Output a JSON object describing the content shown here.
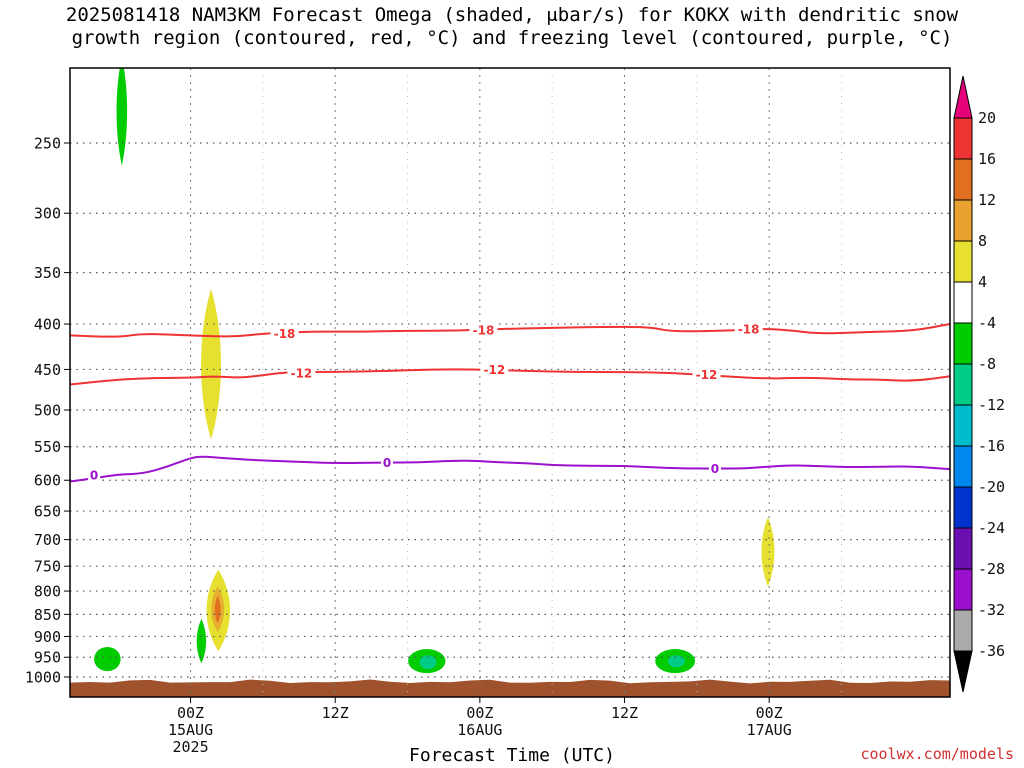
{
  "title": {
    "line1": "2025081418 NAM3KM Forecast Omega (shaded, μbar/s) for KOKX with dendritic snow",
    "line2": "growth region (contoured, red, °C) and freezing level (contoured, purple, °C)"
  },
  "watermark": "coolwx.com/models",
  "chart_data": {
    "type": "time-height contour",
    "xlabel": "Forecast Time (UTC)",
    "ylabel": "",
    "x_range_hours": [
      -10,
      63
    ],
    "y_range_hPa": [
      200,
      1030
    ],
    "y_scale": "log-pressure (inverted)",
    "grid": "dotted",
    "y_ticks": [
      250,
      300,
      350,
      400,
      450,
      500,
      550,
      600,
      650,
      700,
      750,
      800,
      850,
      900,
      950,
      1000
    ],
    "x_ticks": [
      {
        "hour": 0,
        "label": [
          "00Z",
          "15AUG",
          "2025"
        ]
      },
      {
        "hour": 12,
        "label": [
          "12Z"
        ]
      },
      {
        "hour": 24,
        "label": [
          "00Z",
          "16AUG"
        ]
      },
      {
        "hour": 36,
        "label": [
          "12Z"
        ]
      },
      {
        "hour": 48,
        "label": [
          "00Z",
          "17AUG"
        ]
      }
    ],
    "contours": [
      {
        "name": "-18",
        "color": "#ee3333",
        "points": [
          [
            -10,
            412
          ],
          [
            -6,
            414
          ],
          [
            -4,
            410
          ],
          [
            0,
            412
          ],
          [
            2,
            413
          ],
          [
            4,
            413
          ],
          [
            6,
            410
          ],
          [
            8,
            409
          ],
          [
            10,
            408
          ],
          [
            12,
            408
          ],
          [
            14,
            408
          ],
          [
            18,
            407
          ],
          [
            22,
            407
          ],
          [
            26,
            405
          ],
          [
            30,
            404
          ],
          [
            34,
            403
          ],
          [
            38,
            403
          ],
          [
            40,
            408
          ],
          [
            44,
            407
          ],
          [
            46,
            406
          ],
          [
            48,
            405
          ],
          [
            50,
            407
          ],
          [
            52,
            410
          ],
          [
            55,
            409
          ],
          [
            57,
            408
          ],
          [
            60,
            407
          ],
          [
            63,
            400
          ]
        ],
        "labels": [
          {
            "x": 7.8,
            "y": 410
          },
          {
            "x": 24.3,
            "y": 406
          },
          {
            "x": 46.3,
            "y": 405
          }
        ]
      },
      {
        "name": "-12",
        "color": "#ee3333",
        "points": [
          [
            -10,
            468
          ],
          [
            -6,
            462
          ],
          [
            -3,
            460
          ],
          [
            0,
            460
          ],
          [
            2,
            458
          ],
          [
            4,
            460
          ],
          [
            6,
            457
          ],
          [
            8,
            453
          ],
          [
            12,
            453
          ],
          [
            16,
            452
          ],
          [
            20,
            450
          ],
          [
            24,
            450
          ],
          [
            28,
            452
          ],
          [
            32,
            453
          ],
          [
            36,
            453
          ],
          [
            40,
            454
          ],
          [
            44,
            458
          ],
          [
            48,
            461
          ],
          [
            50,
            460
          ],
          [
            52,
            460
          ],
          [
            55,
            462
          ],
          [
            57,
            462
          ],
          [
            60,
            464
          ],
          [
            63,
            458
          ]
        ],
        "labels": [
          {
            "x": 9.2,
            "y": 454
          },
          {
            "x": 25.2,
            "y": 450
          },
          {
            "x": 42.8,
            "y": 456
          }
        ]
      },
      {
        "name": "0",
        "color": "#9a10cc",
        "points": [
          [
            -10,
            602
          ],
          [
            -8,
            597
          ],
          [
            -6,
            591
          ],
          [
            -4,
            590
          ],
          [
            -2,
            580
          ],
          [
            0,
            566
          ],
          [
            1,
            564
          ],
          [
            3,
            567
          ],
          [
            6,
            570
          ],
          [
            9,
            572
          ],
          [
            12,
            574
          ],
          [
            16,
            573
          ],
          [
            19,
            573
          ],
          [
            22,
            570
          ],
          [
            24,
            571
          ],
          [
            26,
            573
          ],
          [
            28,
            574
          ],
          [
            30,
            577
          ],
          [
            33,
            578
          ],
          [
            36,
            578
          ],
          [
            38,
            580
          ],
          [
            41,
            582
          ],
          [
            44,
            582
          ],
          [
            46,
            582
          ],
          [
            48,
            579
          ],
          [
            50,
            577
          ],
          [
            53,
            579
          ],
          [
            55,
            580
          ],
          [
            58,
            579
          ],
          [
            60,
            579
          ],
          [
            63,
            583
          ]
        ],
        "labels": [
          {
            "x": -8.0,
            "y": 592
          },
          {
            "x": 16.3,
            "y": 573
          },
          {
            "x": 43.5,
            "y": 582
          }
        ]
      }
    ],
    "shaded_areas": [
      {
        "name": "omega -4 to -8",
        "color": "#00cc00",
        "x_range": [
          -6.2,
          -5.3
        ],
        "y_range": [
          200,
          265
        ],
        "center_x": -5.7
      },
      {
        "name": "omega 4 to 8",
        "color": "#e6e030",
        "x_range": [
          0.7,
          2.4
        ],
        "y_range": [
          365,
          540
        ],
        "center_x": 1.7
      },
      {
        "name": "omega 4 to 8",
        "color": "#e6e030",
        "x_range": [
          1.3,
          3.3
        ],
        "y_range": [
          757,
          935
        ],
        "center_x": 2.3
      },
      {
        "name": "omega 8 to 12",
        "color": "#e8b030",
        "x_range": [
          1.7,
          2.8
        ],
        "y_range": [
          790,
          890
        ],
        "center_x": 2.25
      },
      {
        "name": "omega 12 to 16",
        "color": "#e07020",
        "x_range": [
          2.0,
          2.5
        ],
        "y_range": [
          810,
          870
        ],
        "center_x": 2.25
      },
      {
        "name": "omega -4 to -8",
        "color": "#00cc00",
        "x_range": [
          0.4,
          1.2
        ],
        "y_range": [
          860,
          965
        ],
        "center_x": 0.9
      },
      {
        "name": "omega -4 to -8",
        "color": "#00cc00",
        "x_range": [
          -8.0,
          -5.8
        ],
        "y_range": [
          925,
          985
        ],
        "center_x": -6.9
      },
      {
        "name": "omega -4 to -8",
        "color": "#00cc00",
        "x_range": [
          18.2,
          21.3
        ],
        "y_range": [
          930,
          990
        ],
        "center_x": 19.6
      },
      {
        "name": "omega -8 to -12",
        "color": "#00cc88",
        "x_range": [
          19.0,
          20.4
        ],
        "y_range": [
          945,
          980
        ],
        "center_x": 19.7
      },
      {
        "name": "omega -4 to -8",
        "color": "#00cc00",
        "x_range": [
          38.6,
          41.9
        ],
        "y_range": [
          930,
          990
        ],
        "center_x": 40.2
      },
      {
        "name": "omega -8 to -12",
        "color": "#00cc88",
        "x_range": [
          39.6,
          41.0
        ],
        "y_range": [
          945,
          975
        ],
        "center_x": 40.3
      },
      {
        "name": "omega 4 to 8",
        "color": "#e6e030",
        "x_range": [
          47.4,
          48.5
        ],
        "y_range": [
          660,
          790
        ],
        "center_x": 47.9
      }
    ],
    "terrain": {
      "color": "#a0522d",
      "top_pressure_hPa": 1012
    },
    "colorbar": {
      "levels": [
        "20",
        "16",
        "12",
        "8",
        "4",
        "-4",
        "-8",
        "-12",
        "-16",
        "-20",
        "-24",
        "-28",
        "-32",
        "-36"
      ],
      "colors": [
        "#e6007a",
        "#ee3333",
        "#e07020",
        "#e8a030",
        "#e8e030",
        "#ffffff",
        "#00cc00",
        "#00cc88",
        "#00bbcc",
        "#0088ee",
        "#0033cc",
        "#6a10b0",
        "#9a10cc",
        "#aaaaaa",
        "#000000"
      ]
    }
  }
}
